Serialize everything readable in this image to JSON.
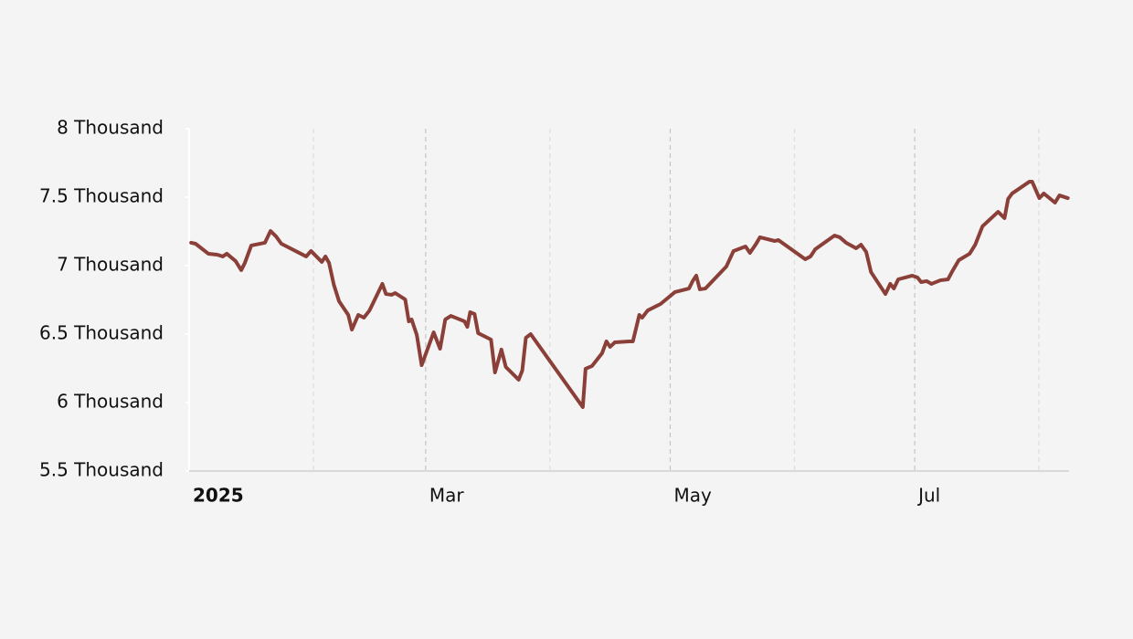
{
  "chart_data": {
    "type": "line",
    "color": "#8a4038",
    "xlim": [
      0,
      219.5
    ],
    "xticks": [
      {
        "value": 0,
        "label": "2025"
      },
      {
        "value": 59,
        "label": "Mar"
      },
      {
        "value": 120,
        "label": "May"
      },
      {
        "value": 181,
        "label": "Jul"
      }
    ],
    "minor_xticks": [
      31,
      90,
      151,
      212
    ],
    "ylim": [
      5.5,
      8
    ],
    "yticks": [
      {
        "value": 5.5,
        "label": "5.5 Thousand"
      },
      {
        "value": 6,
        "label": "6 Thousand"
      },
      {
        "value": 6.5,
        "label": "6.5 Thousand"
      },
      {
        "value": 7,
        "label": "7 Thousand"
      },
      {
        "value": 7.5,
        "label": "7.5 Thousand"
      },
      {
        "value": 8,
        "label": "8 Thousand"
      }
    ],
    "grid": true,
    "x": [
      0.5,
      1.6,
      4.8,
      7,
      8.4,
      9.4,
      11.6,
      13,
      13.9,
      15.5,
      18.9,
      20.3,
      21.7,
      23,
      29.2,
      30.4,
      33.1,
      34,
      34.9,
      36.1,
      37.4,
      39.7,
      40.6,
      42.2,
      43.6,
      45,
      48.2,
      49.1,
      50.5,
      51.4,
      53.9,
      54.8,
      55.5,
      56.8,
      58,
      61,
      62.6,
      63.9,
      65.3,
      68.7,
      69.4,
      70.1,
      71.2,
      72.1,
      75.3,
      76.3,
      77.9,
      79,
      82.2,
      83.1,
      84,
      85.2,
      98.2,
      98.9,
      100.5,
      103,
      104.1,
      105,
      106.2,
      109.8,
      110.7,
      112.3,
      113,
      114.4,
      117.6,
      121.2,
      124.7,
      125.6,
      126.5,
      127.4,
      128.8,
      134,
      135.8,
      138.8,
      139.9,
      141.3,
      142.4,
      146.1,
      147,
      153.7,
      155,
      156.2,
      161,
      162.3,
      163.9,
      166.4,
      167.6,
      168.9,
      170.1,
      173.7,
      174.9,
      175.8,
      176.9,
      180.4,
      181.7,
      182.6,
      184,
      185.2,
      187.4,
      189.3,
      190.4,
      192,
      194.7,
      196.1,
      197.9,
      201.8,
      203.4,
      204.3,
      205.3,
      209.6,
      210.3,
      212.1,
      213.2,
      216,
      217.1,
      219.2
    ],
    "values": [
      7.167,
      7.16,
      7.087,
      7.08,
      7.067,
      7.087,
      7.033,
      6.967,
      7.02,
      7.147,
      7.167,
      7.253,
      7.213,
      7.16,
      7.067,
      7.107,
      7.027,
      7.067,
      7.02,
      6.86,
      6.74,
      6.64,
      6.533,
      6.64,
      6.62,
      6.673,
      6.867,
      6.793,
      6.787,
      6.8,
      6.753,
      6.593,
      6.607,
      6.493,
      6.273,
      6.513,
      6.393,
      6.607,
      6.633,
      6.593,
      6.553,
      6.66,
      6.647,
      6.507,
      6.46,
      6.22,
      6.387,
      6.26,
      6.167,
      6.233,
      6.473,
      6.5,
      5.967,
      6.247,
      6.267,
      6.36,
      6.447,
      6.407,
      6.44,
      6.447,
      6.447,
      6.64,
      6.62,
      6.673,
      6.72,
      6.807,
      6.833,
      6.887,
      6.927,
      6.827,
      6.833,
      6.993,
      7.107,
      7.14,
      7.093,
      7.153,
      7.207,
      7.18,
      7.187,
      7.047,
      7.067,
      7.12,
      7.22,
      7.207,
      7.167,
      7.127,
      7.153,
      7.1,
      6.953,
      6.793,
      6.867,
      6.833,
      6.9,
      6.927,
      6.913,
      6.88,
      6.887,
      6.867,
      6.893,
      6.9,
      6.96,
      7.04,
      7.087,
      7.153,
      7.287,
      7.393,
      7.347,
      7.487,
      7.527,
      7.613,
      7.613,
      7.493,
      7.527,
      7.46,
      7.513,
      7.493
    ]
  }
}
